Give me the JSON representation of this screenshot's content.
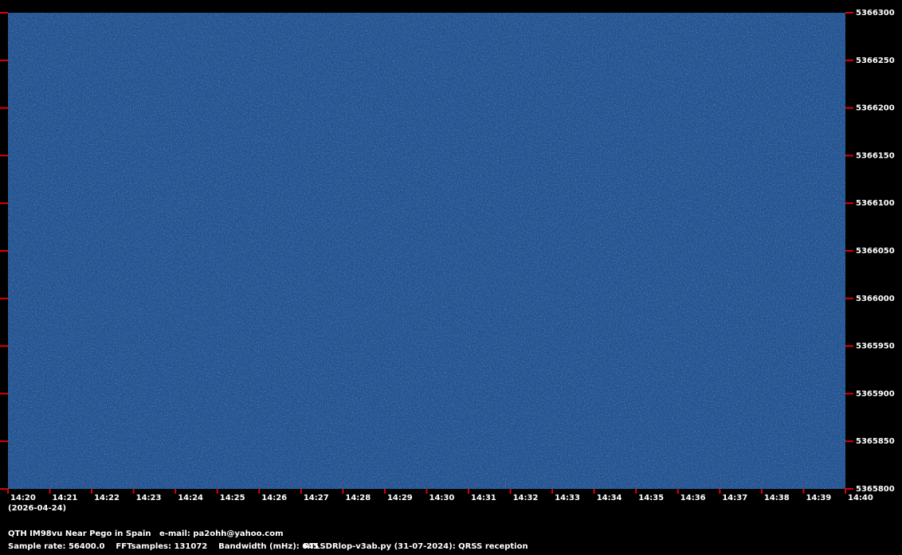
{
  "y_axis": {
    "labels": [
      "5366300",
      "5366250",
      "5366200",
      "5366150",
      "5366100",
      "5366050",
      "5366000",
      "5365950",
      "5365900",
      "5365850",
      "5365800"
    ]
  },
  "x_axis": {
    "labels": [
      "14:20",
      "14:21",
      "14:22",
      "14:23",
      "14:24",
      "14:25",
      "14:26",
      "14:27",
      "14:28",
      "14:29",
      "14:30",
      "14:31",
      "14:32",
      "14:33",
      "14:34",
      "14:35",
      "14:36",
      "14:37",
      "14:38",
      "14:39",
      "14:40"
    ],
    "date": "(2026-04-24)"
  },
  "footer": {
    "station": "QTH IM98vu Near Pego in Spain   e-mail: pa2ohh@yahoo.com",
    "settings": "Sample rate: 56400.0    FFTsamples: 131072    Bandwidth (mHz): 645",
    "program": "RTLSDRlop-v3ab.py (31-07-2024): QRSS reception"
  }
}
